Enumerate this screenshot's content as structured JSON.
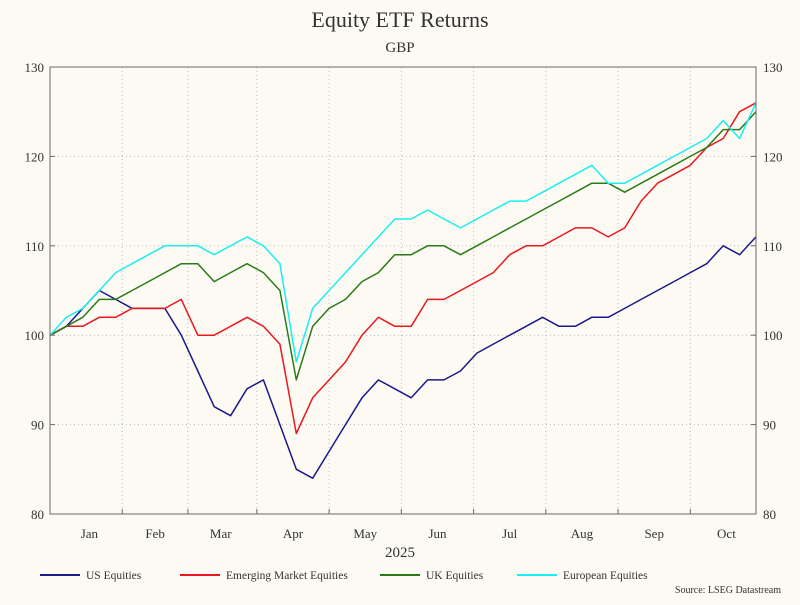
{
  "chart_data": {
    "type": "line",
    "title": "Equity ETF Returns",
    "subtitle": "GBP",
    "xlabel": "2025",
    "ylabel": "",
    "ylim": [
      80,
      130
    ],
    "y_ticks": [
      80,
      90,
      100,
      110,
      120,
      130
    ],
    "x_range": [
      0,
      43
    ],
    "month_labels": [
      {
        "label": "Jan",
        "at": 2.4
      },
      {
        "label": "Feb",
        "at": 6.4
      },
      {
        "label": "Mar",
        "at": 10.4
      },
      {
        "label": "Apr",
        "at": 14.8
      },
      {
        "label": "May",
        "at": 19.2
      },
      {
        "label": "Jun",
        "at": 23.6
      },
      {
        "label": "Jul",
        "at": 28.0
      },
      {
        "label": "Aug",
        "at": 32.4
      },
      {
        "label": "Sep",
        "at": 36.8
      },
      {
        "label": "Oct",
        "at": 41.2
      }
    ],
    "grid": true,
    "legend_position": "bottom",
    "source": "Source: LSEG Datastream",
    "series": [
      {
        "name": "US Equities",
        "color": "#1a1a8c",
        "x": [
          0,
          1,
          2,
          3,
          4,
          5,
          6,
          7,
          8,
          9,
          10,
          11,
          12,
          13,
          14,
          15,
          16,
          17,
          18,
          19,
          20,
          21,
          22,
          23,
          24,
          25,
          26,
          27,
          28,
          29,
          30,
          31,
          32,
          33,
          34,
          35,
          36,
          37,
          38,
          39,
          40,
          41,
          42,
          43
        ],
        "values": [
          100,
          101,
          103,
          105,
          104,
          103,
          103,
          103,
          100,
          96,
          92,
          91,
          94,
          95,
          90,
          85,
          84,
          87,
          90,
          93,
          95,
          94,
          93,
          95,
          95,
          96,
          98,
          99,
          100,
          101,
          102,
          101,
          101,
          102,
          102,
          103,
          104,
          105,
          106,
          107,
          108,
          110,
          109,
          111
        ]
      },
      {
        "name": "Emerging Market Equities",
        "color": "#e8191e",
        "x": [
          0,
          1,
          2,
          3,
          4,
          5,
          6,
          7,
          8,
          9,
          10,
          11,
          12,
          13,
          14,
          15,
          16,
          17,
          18,
          19,
          20,
          21,
          22,
          23,
          24,
          25,
          26,
          27,
          28,
          29,
          30,
          31,
          32,
          33,
          34,
          35,
          36,
          37,
          38,
          39,
          40,
          41,
          42,
          43
        ],
        "values": [
          100,
          101,
          101,
          102,
          102,
          103,
          103,
          103,
          104,
          100,
          100,
          101,
          102,
          101,
          99,
          89,
          93,
          95,
          97,
          100,
          102,
          101,
          101,
          104,
          104,
          105,
          106,
          107,
          109,
          110,
          110,
          111,
          112,
          112,
          111,
          112,
          115,
          117,
          118,
          119,
          121,
          122,
          125,
          126
        ]
      },
      {
        "name": "UK Equities",
        "color": "#2a7a1a",
        "x": [
          0,
          1,
          2,
          3,
          4,
          5,
          6,
          7,
          8,
          9,
          10,
          11,
          12,
          13,
          14,
          15,
          16,
          17,
          18,
          19,
          20,
          21,
          22,
          23,
          24,
          25,
          26,
          27,
          28,
          29,
          30,
          31,
          32,
          33,
          34,
          35,
          36,
          37,
          38,
          39,
          40,
          41,
          42,
          43
        ],
        "values": [
          100,
          101,
          102,
          104,
          104,
          105,
          106,
          107,
          108,
          108,
          106,
          107,
          108,
          107,
          105,
          95,
          101,
          103,
          104,
          106,
          107,
          109,
          109,
          110,
          110,
          109,
          110,
          111,
          112,
          113,
          114,
          115,
          116,
          117,
          117,
          116,
          117,
          118,
          119,
          120,
          121,
          123,
          123,
          125
        ]
      },
      {
        "name": "European Equities",
        "color": "#1aeef2",
        "x": [
          0,
          1,
          2,
          3,
          4,
          5,
          6,
          7,
          8,
          9,
          10,
          11,
          12,
          13,
          14,
          15,
          16,
          17,
          18,
          19,
          20,
          21,
          22,
          23,
          24,
          25,
          26,
          27,
          28,
          29,
          30,
          31,
          32,
          33,
          34,
          35,
          36,
          37,
          38,
          39,
          40,
          41,
          42,
          43
        ],
        "values": [
          100,
          102,
          103,
          105,
          107,
          108,
          109,
          110,
          110,
          110,
          109,
          110,
          111,
          110,
          108,
          97,
          103,
          105,
          107,
          109,
          111,
          113,
          113,
          114,
          113,
          112,
          113,
          114,
          115,
          115,
          116,
          117,
          118,
          119,
          117,
          117,
          118,
          119,
          120,
          121,
          122,
          124,
          122,
          126
        ]
      }
    ]
  }
}
